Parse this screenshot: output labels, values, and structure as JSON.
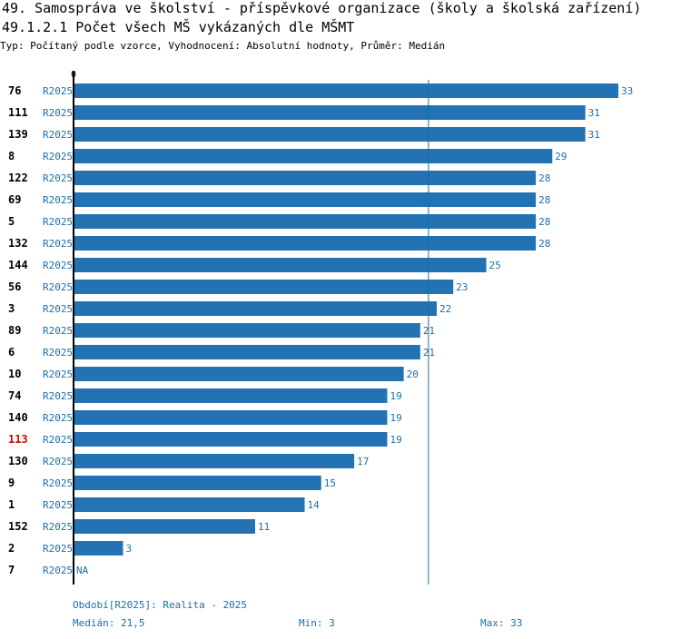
{
  "header": {
    "title": "49. Samospráva ve školství - příspěvkové organizace (školy a školská zařízení)",
    "subtitle": "49.1.2.1 Počet všech MŠ vykázaných dle MŠMT",
    "type_line": "Typ: Počítaný podle vzorce, Vyhodnocení: Absolutní hodnoty, Průměr: Medián"
  },
  "chart_data": {
    "type": "bar",
    "orientation": "horizontal",
    "x_axis_origin_label": "0",
    "xlim": [
      0,
      33
    ],
    "median": 21.5,
    "series_label": "R2025",
    "highlight_category": "113",
    "categories": [
      "76",
      "111",
      "139",
      "8",
      "122",
      "69",
      "5",
      "132",
      "144",
      "56",
      "3",
      "89",
      "6",
      "10",
      "74",
      "140",
      "113",
      "130",
      "9",
      "1",
      "152",
      "2",
      "7"
    ],
    "values": [
      33,
      31,
      31,
      29,
      28,
      28,
      28,
      28,
      25,
      23,
      22,
      21,
      21,
      20,
      19,
      19,
      19,
      17,
      15,
      14,
      11,
      3,
      null
    ],
    "value_labels": [
      "33",
      "31",
      "31",
      "29",
      "28",
      "28",
      "28",
      "28",
      "25",
      "23",
      "22",
      "21",
      "21",
      "20",
      "19",
      "19",
      "19",
      "17",
      "15",
      "14",
      "11",
      "3",
      "NA"
    ]
  },
  "footer": {
    "period": "Období[R2025]: Realita - 2025",
    "median": "Medián: 21,5",
    "min": "Min: 3",
    "max": "Max: 33"
  },
  "colors": {
    "bar": "#2272b4",
    "label_blue": "#1a6fa8",
    "highlight": "#e00000",
    "axis": "#000000"
  }
}
